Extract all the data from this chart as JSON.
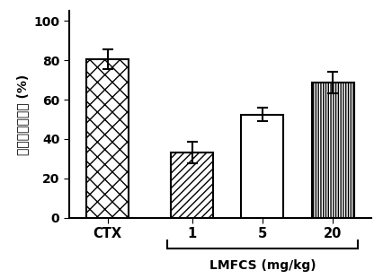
{
  "categories": [
    "CTX",
    "1",
    "5",
    "20"
  ],
  "values": [
    80.5,
    33.0,
    52.5,
    68.5
  ],
  "errors": [
    5.0,
    5.5,
    3.5,
    5.5
  ],
  "hatch_patterns": [
    "xx",
    "////",
    "=====",
    "||||||"
  ],
  "bar_color": "white",
  "bar_edgecolor": "black",
  "ylabel": "肿瘾转移抑制率 (%)",
  "ylim": [
    0,
    105
  ],
  "yticks": [
    0,
    20,
    40,
    60,
    80,
    100
  ],
  "bracket_label": "LMFCS (mg/kg)",
  "background_color": "#ffffff",
  "bar_linewidth": 1.5,
  "figsize": [
    4.26,
    3.11
  ],
  "dpi": 100
}
